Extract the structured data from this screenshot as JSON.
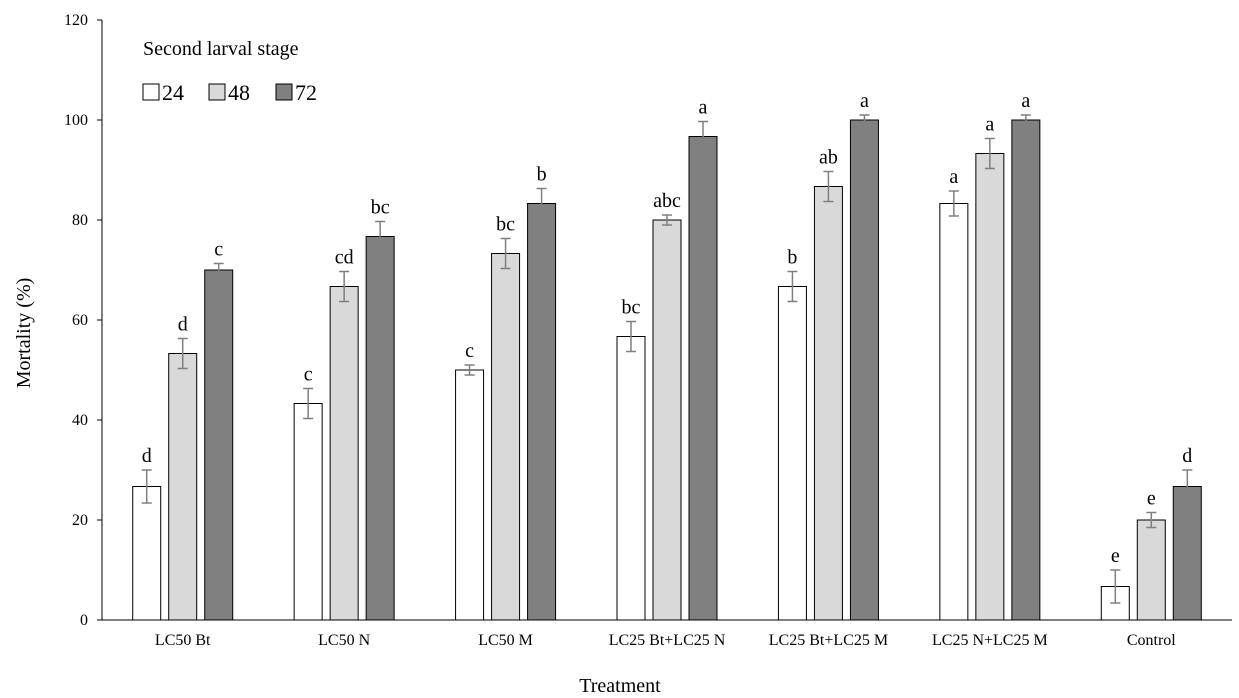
{
  "chart_data": {
    "type": "bar",
    "title": "",
    "annotation": "Second larval stage",
    "xlabel": "Treatment",
    "ylabel": "Mortality (%)",
    "ylim": [
      0,
      120
    ],
    "yticks": [
      0,
      20,
      40,
      60,
      80,
      100,
      120
    ],
    "grid": false,
    "legend_position": "top-left",
    "categories": [
      "LC50 Bt",
      "LC50 N",
      "LC50 M",
      "LC25 Bt+LC25 N",
      "LC25 Bt+LC25 M",
      "LC25 N+LC25 M",
      "Control"
    ],
    "series": [
      {
        "name": "24",
        "color": "#ffffff",
        "values": [
          26.7,
          43.3,
          50.0,
          56.7,
          66.7,
          83.3,
          6.7
        ],
        "errors": [
          3.3,
          3.0,
          1.0,
          3.0,
          3.0,
          2.5,
          3.3
        ],
        "letters": [
          "d",
          "c",
          "c",
          "bc",
          "b",
          "a",
          "e"
        ]
      },
      {
        "name": "48",
        "color": "#d9d9d9",
        "values": [
          53.3,
          66.7,
          73.3,
          80.0,
          86.7,
          93.3,
          20.0
        ],
        "errors": [
          3.0,
          3.0,
          3.0,
          1.0,
          3.0,
          3.0,
          1.5
        ],
        "letters": [
          "d",
          "cd",
          "bc",
          "abc",
          "ab",
          "a",
          "e"
        ]
      },
      {
        "name": "72",
        "color": "#808080",
        "values": [
          70.0,
          76.7,
          83.3,
          96.7,
          100.0,
          100.0,
          26.7
        ],
        "errors": [
          1.3,
          3.0,
          3.0,
          3.0,
          1.0,
          1.0,
          3.3
        ],
        "letters": [
          "c",
          "bc",
          "b",
          "a",
          "a",
          "a",
          "d"
        ]
      }
    ]
  }
}
